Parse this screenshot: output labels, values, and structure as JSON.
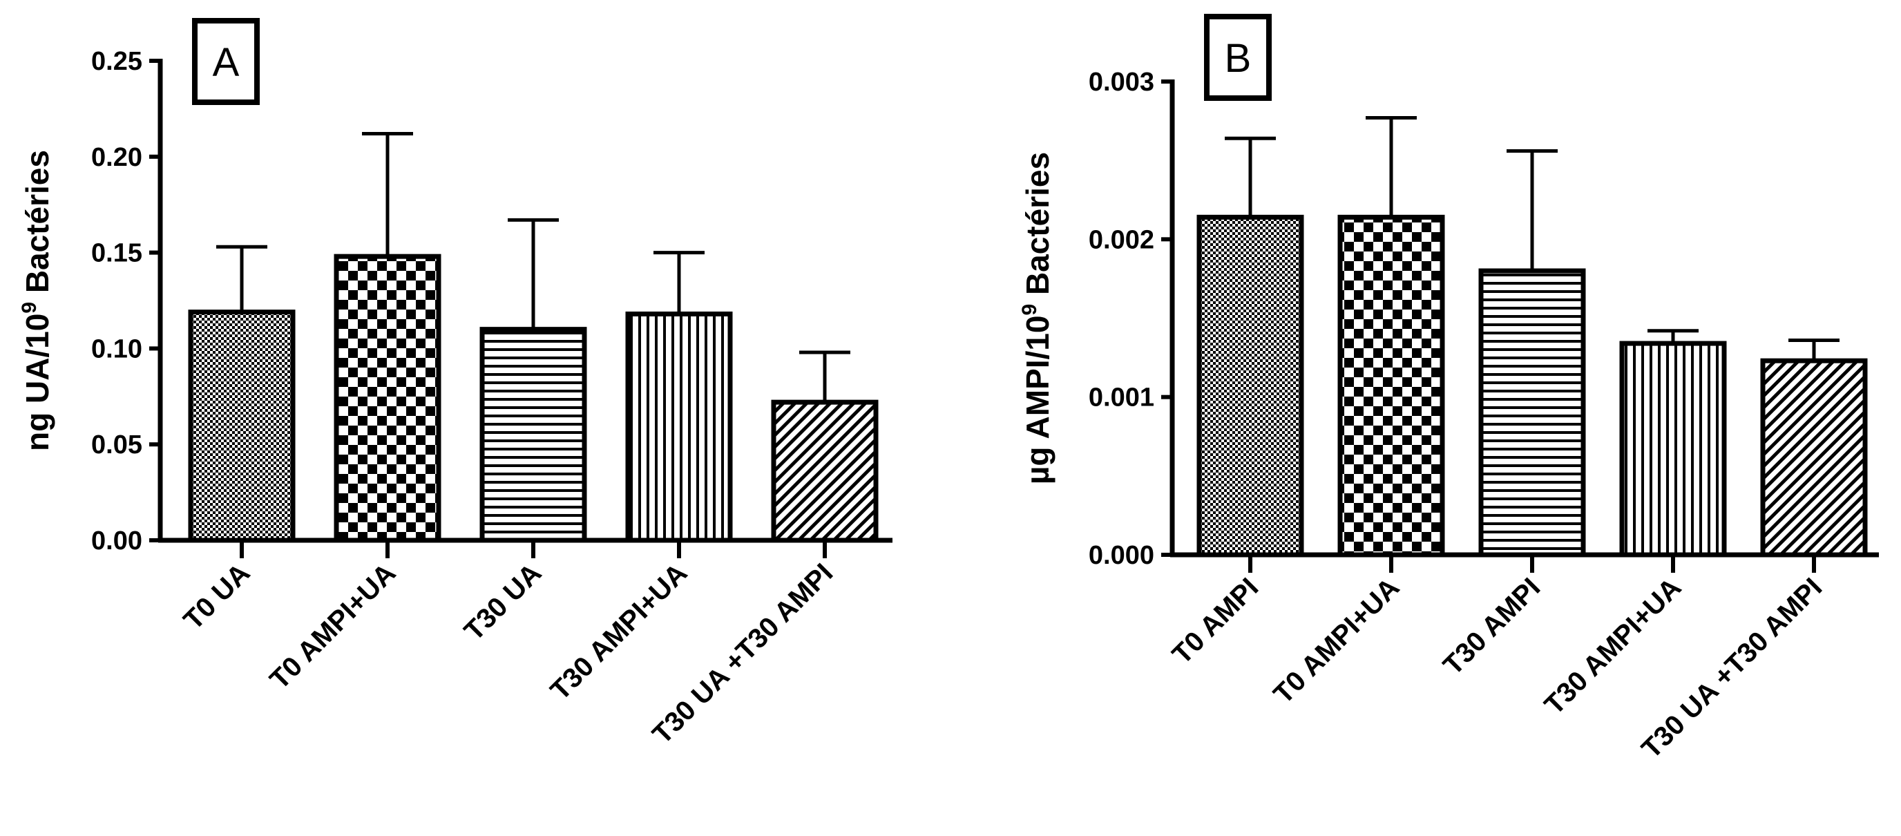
{
  "chart_data": [
    {
      "type": "bar",
      "panel_label": "A",
      "ylabel_main": "ng UA/10",
      "ylabel_sup": "9",
      "ylabel_tail": " Bactéries",
      "xlabel": "",
      "ylim": [
        0,
        0.25
      ],
      "yticks": [
        0,
        0.05,
        0.1,
        0.15,
        0.2,
        0.25
      ],
      "ytick_labels": [
        "0.00",
        "0.05",
        "0.10",
        "0.15",
        "0.20",
        "0.25"
      ],
      "categories": [
        "T0 UA",
        "T0 AMPI+UA",
        "T30 UA",
        "T30 AMPI+UA",
        "T30 UA +T30 AMPI"
      ],
      "values": [
        0.119,
        0.148,
        0.11,
        0.118,
        0.072
      ],
      "error_upper": [
        0.153,
        0.212,
        0.167,
        0.15,
        0.098
      ],
      "patterns": [
        "dots",
        "checker",
        "hlines",
        "vlines",
        "diag"
      ]
    },
    {
      "type": "bar",
      "panel_label": "B",
      "ylabel_main": "µg AMPI/10",
      "ylabel_sup": "9",
      "ylabel_tail": " Bactéries",
      "xlabel": "",
      "ylim": [
        0,
        0.003
      ],
      "yticks": [
        0,
        0.001,
        0.002,
        0.003
      ],
      "ytick_labels": [
        "0.000",
        "0.001",
        "0.002",
        "0.003"
      ],
      "categories": [
        "T0 AMPI",
        "T0 AMPI+UA",
        "T30 AMPI",
        "T30 AMPI+UA",
        "T30 UA +T30 AMPI"
      ],
      "values": [
        0.00214,
        0.00214,
        0.0018,
        0.00134,
        0.00123
      ],
      "error_upper": [
        0.00264,
        0.00277,
        0.00256,
        0.00142,
        0.00136
      ],
      "patterns": [
        "dots",
        "checker",
        "hlines",
        "vlines",
        "diag"
      ]
    }
  ]
}
